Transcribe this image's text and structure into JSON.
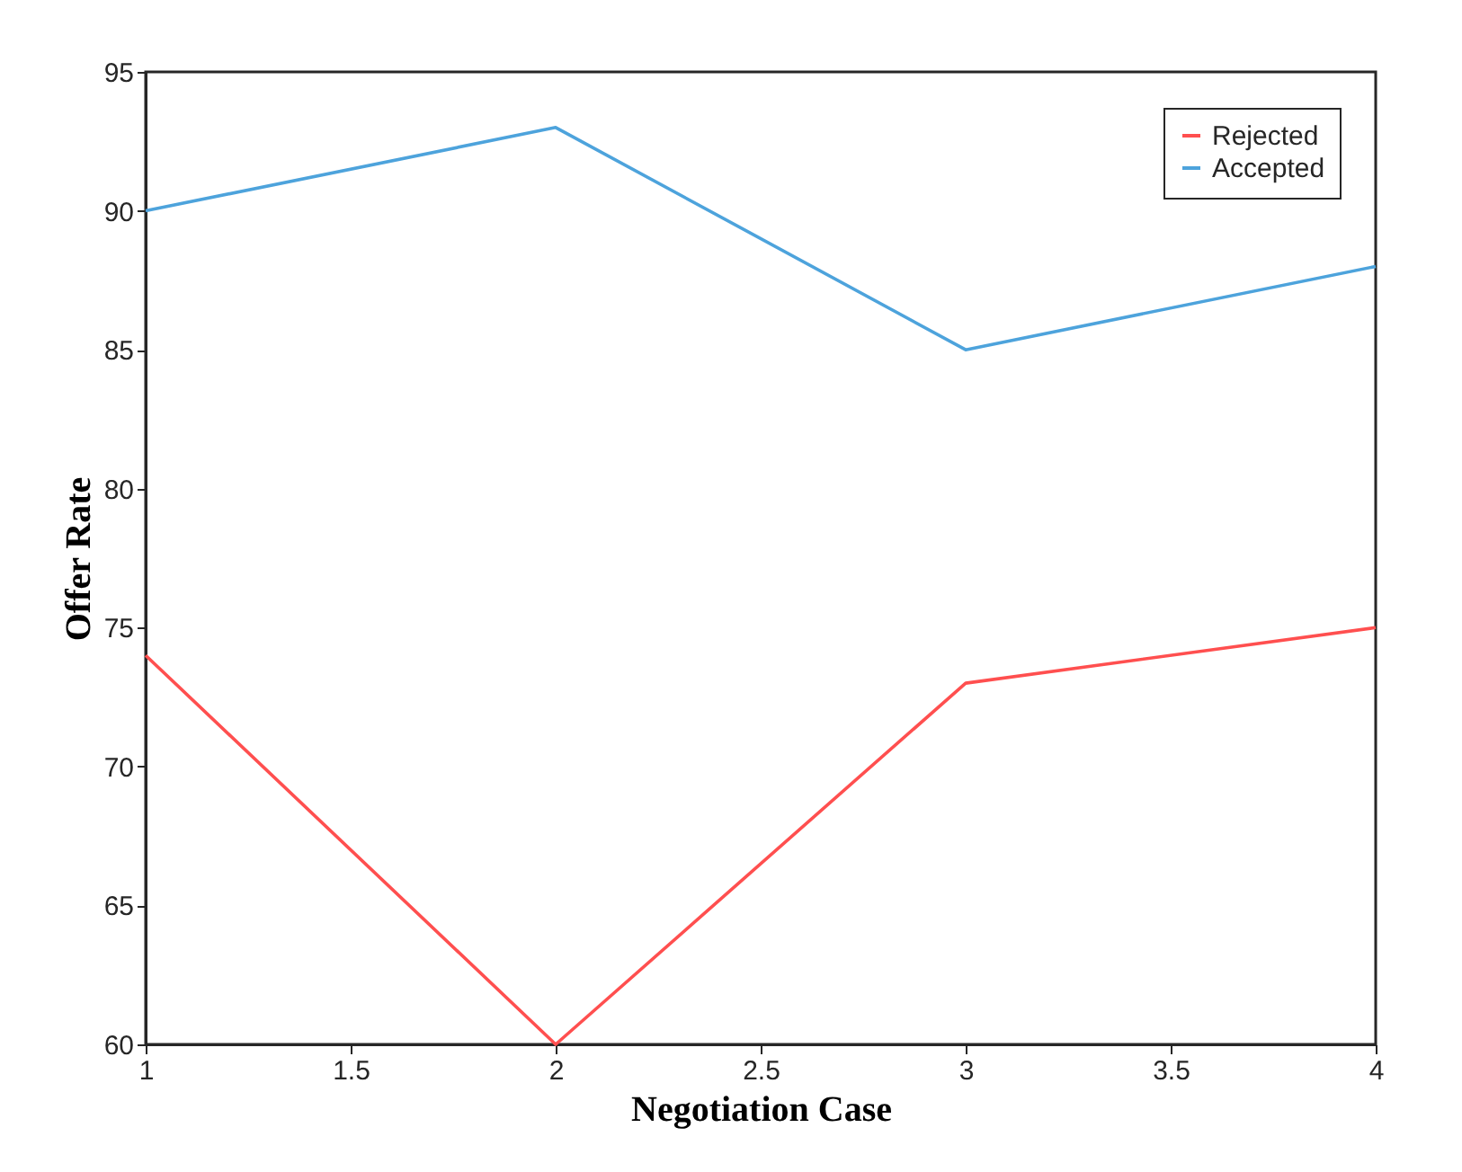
{
  "chart_data": {
    "type": "line",
    "xlabel": "Negotiation Case",
    "ylabel": "Offer Rate",
    "x": [
      1,
      2,
      3,
      4
    ],
    "series": [
      {
        "name": "Rejected",
        "color": "#ff4f4f",
        "values": [
          74,
          60,
          73,
          75
        ]
      },
      {
        "name": "Accepted",
        "color": "#4da3dc",
        "values": [
          90,
          93,
          85,
          88
        ]
      }
    ],
    "xlim": [
      1,
      4
    ],
    "xticks": [
      1,
      1.5,
      2,
      2.5,
      3,
      3.5,
      4
    ],
    "ylim": [
      60,
      95
    ],
    "yticks": [
      60,
      65,
      70,
      75,
      80,
      85,
      90,
      95
    ],
    "grid": false,
    "legend": "top right",
    "marker": "none",
    "line_style": "solid"
  }
}
